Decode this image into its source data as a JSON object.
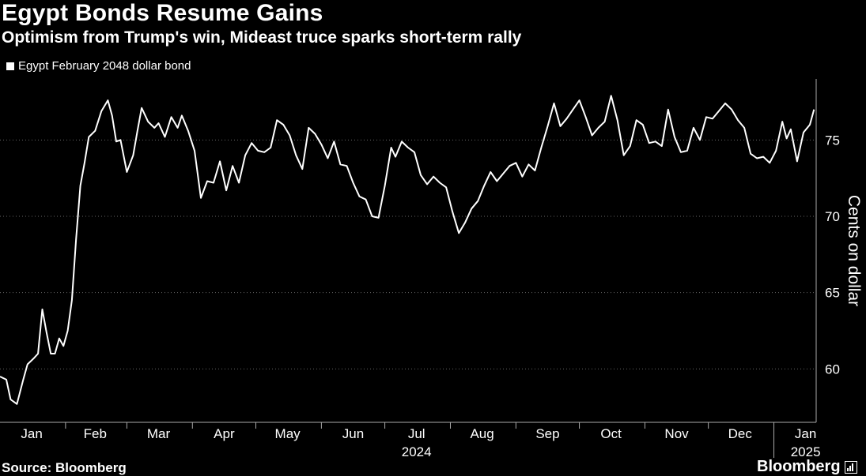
{
  "header": {
    "title": "Egypt Bonds Resume Gains",
    "subtitle": "Optimism from Trump's win, Mideast truce sparks short-term rally"
  },
  "footer": {
    "source": "Source: Bloomberg",
    "brand": "Bloomberg"
  },
  "colors": {
    "background": "#000000",
    "line": "#ffffff",
    "grid": "#666666"
  },
  "chart_data": {
    "type": "line",
    "title": "Egypt Bonds Resume Gains",
    "subtitle": "Optimism from Trump's win, Mideast truce sparks short-term rally",
    "ylabel": "Cents on dollar",
    "xlabel": "",
    "ylim": [
      56.5,
      79
    ],
    "y_ticks": [
      60,
      65,
      70,
      75
    ],
    "y_axis_side": "right",
    "grid": "horizontal dotted",
    "legend_position": "top-left",
    "x_ticks": [
      {
        "label": "Jan",
        "date": "2024-01-16"
      },
      {
        "label": "Feb",
        "date": "2024-02-15"
      },
      {
        "label": "Mar",
        "date": "2024-03-16"
      },
      {
        "label": "Apr",
        "date": "2024-04-16"
      },
      {
        "label": "May",
        "date": "2024-05-16"
      },
      {
        "label": "Jun",
        "date": "2024-06-16"
      },
      {
        "label": "Jul",
        "date": "2024-07-16"
      },
      {
        "label": "Aug",
        "date": "2024-08-16"
      },
      {
        "label": "Sep",
        "date": "2024-09-16"
      },
      {
        "label": "Oct",
        "date": "2024-10-16"
      },
      {
        "label": "Nov",
        "date": "2024-11-16"
      },
      {
        "label": "Dec",
        "date": "2024-12-16"
      },
      {
        "label": "Jan",
        "date": "2025-01-16"
      }
    ],
    "year_labels": [
      {
        "label": "2024",
        "date": "2024-07-16"
      },
      {
        "label": "2025",
        "date": "2025-01-16"
      }
    ],
    "x_range": [
      "2024-01-01",
      "2025-01-21"
    ],
    "series": [
      {
        "name": "Egypt February 2048 dollar bond",
        "points": [
          [
            "2024-01-01",
            59.5
          ],
          [
            "2024-01-04",
            59.3
          ],
          [
            "2024-01-06",
            58.0
          ],
          [
            "2024-01-09",
            57.7
          ],
          [
            "2024-01-12",
            59.3
          ],
          [
            "2024-01-14",
            60.3
          ],
          [
            "2024-01-17",
            60.7
          ],
          [
            "2024-01-19",
            61.0
          ],
          [
            "2024-01-21",
            63.9
          ],
          [
            "2024-01-23",
            62.4
          ],
          [
            "2024-01-25",
            61.0
          ],
          [
            "2024-01-27",
            61.0
          ],
          [
            "2024-01-29",
            62.0
          ],
          [
            "2024-01-31",
            61.5
          ],
          [
            "2024-02-02",
            62.5
          ],
          [
            "2024-02-04",
            64.5
          ],
          [
            "2024-02-06",
            68.5
          ],
          [
            "2024-02-08",
            72.0
          ],
          [
            "2024-02-10",
            73.5
          ],
          [
            "2024-02-12",
            75.2
          ],
          [
            "2024-02-15",
            75.6
          ],
          [
            "2024-02-18",
            76.9
          ],
          [
            "2024-02-21",
            77.6
          ],
          [
            "2024-02-23",
            76.6
          ],
          [
            "2024-02-25",
            74.9
          ],
          [
            "2024-02-27",
            75.0
          ],
          [
            "2024-03-01",
            72.9
          ],
          [
            "2024-03-04",
            74.0
          ],
          [
            "2024-03-06",
            75.6
          ],
          [
            "2024-03-08",
            77.1
          ],
          [
            "2024-03-11",
            76.2
          ],
          [
            "2024-03-14",
            75.8
          ],
          [
            "2024-03-16",
            76.1
          ],
          [
            "2024-03-19",
            75.2
          ],
          [
            "2024-03-22",
            76.5
          ],
          [
            "2024-03-25",
            75.8
          ],
          [
            "2024-03-27",
            76.6
          ],
          [
            "2024-03-30",
            75.6
          ],
          [
            "2024-04-02",
            74.3
          ],
          [
            "2024-04-05",
            71.2
          ],
          [
            "2024-04-08",
            72.3
          ],
          [
            "2024-04-11",
            72.2
          ],
          [
            "2024-04-14",
            73.6
          ],
          [
            "2024-04-17",
            71.7
          ],
          [
            "2024-04-20",
            73.3
          ],
          [
            "2024-04-23",
            72.2
          ],
          [
            "2024-04-26",
            74.0
          ],
          [
            "2024-04-29",
            74.8
          ],
          [
            "2024-05-02",
            74.3
          ],
          [
            "2024-05-05",
            74.2
          ],
          [
            "2024-05-08",
            74.5
          ],
          [
            "2024-05-11",
            76.3
          ],
          [
            "2024-05-14",
            76.0
          ],
          [
            "2024-05-17",
            75.3
          ],
          [
            "2024-05-20",
            74.0
          ],
          [
            "2024-05-23",
            73.1
          ],
          [
            "2024-05-26",
            75.8
          ],
          [
            "2024-05-29",
            75.4
          ],
          [
            "2024-06-01",
            74.7
          ],
          [
            "2024-06-04",
            73.8
          ],
          [
            "2024-06-07",
            74.9
          ],
          [
            "2024-06-10",
            73.4
          ],
          [
            "2024-06-13",
            73.3
          ],
          [
            "2024-06-16",
            72.2
          ],
          [
            "2024-06-19",
            71.3
          ],
          [
            "2024-06-22",
            71.1
          ],
          [
            "2024-06-25",
            70.0
          ],
          [
            "2024-06-28",
            69.9
          ],
          [
            "2024-07-01",
            72.0
          ],
          [
            "2024-07-04",
            74.5
          ],
          [
            "2024-07-06",
            73.9
          ],
          [
            "2024-07-09",
            74.9
          ],
          [
            "2024-07-12",
            74.5
          ],
          [
            "2024-07-15",
            74.2
          ],
          [
            "2024-07-18",
            72.7
          ],
          [
            "2024-07-21",
            72.1
          ],
          [
            "2024-07-24",
            72.6
          ],
          [
            "2024-07-27",
            72.2
          ],
          [
            "2024-07-30",
            71.9
          ],
          [
            "2024-08-02",
            70.3
          ],
          [
            "2024-08-05",
            68.9
          ],
          [
            "2024-08-08",
            69.6
          ],
          [
            "2024-08-11",
            70.5
          ],
          [
            "2024-08-14",
            71.0
          ],
          [
            "2024-08-17",
            72.0
          ],
          [
            "2024-08-20",
            72.9
          ],
          [
            "2024-08-23",
            72.3
          ],
          [
            "2024-08-26",
            72.8
          ],
          [
            "2024-08-29",
            73.3
          ],
          [
            "2024-09-01",
            73.5
          ],
          [
            "2024-09-04",
            72.6
          ],
          [
            "2024-09-07",
            73.4
          ],
          [
            "2024-09-10",
            73.0
          ],
          [
            "2024-09-13",
            74.5
          ],
          [
            "2024-09-16",
            75.9
          ],
          [
            "2024-09-19",
            77.4
          ],
          [
            "2024-09-22",
            75.9
          ],
          [
            "2024-09-25",
            76.4
          ],
          [
            "2024-09-28",
            77.0
          ],
          [
            "2024-10-01",
            77.6
          ],
          [
            "2024-10-04",
            76.5
          ],
          [
            "2024-10-07",
            75.3
          ],
          [
            "2024-10-10",
            75.8
          ],
          [
            "2024-10-13",
            76.2
          ],
          [
            "2024-10-16",
            77.9
          ],
          [
            "2024-10-19",
            76.3
          ],
          [
            "2024-10-22",
            74.0
          ],
          [
            "2024-10-25",
            74.6
          ],
          [
            "2024-10-28",
            76.3
          ],
          [
            "2024-10-31",
            76.0
          ],
          [
            "2024-11-03",
            74.8
          ],
          [
            "2024-11-06",
            74.9
          ],
          [
            "2024-11-09",
            74.6
          ],
          [
            "2024-11-12",
            77.0
          ],
          [
            "2024-11-15",
            75.2
          ],
          [
            "2024-11-18",
            74.2
          ],
          [
            "2024-11-21",
            74.3
          ],
          [
            "2024-11-24",
            75.8
          ],
          [
            "2024-11-27",
            75.0
          ],
          [
            "2024-11-30",
            76.5
          ],
          [
            "2024-12-03",
            76.4
          ],
          [
            "2024-12-06",
            76.9
          ],
          [
            "2024-12-09",
            77.4
          ],
          [
            "2024-12-12",
            77.0
          ],
          [
            "2024-12-15",
            76.3
          ],
          [
            "2024-12-18",
            75.8
          ],
          [
            "2024-12-21",
            74.1
          ],
          [
            "2024-12-24",
            73.8
          ],
          [
            "2024-12-27",
            73.9
          ],
          [
            "2024-12-30",
            73.5
          ],
          [
            "2025-01-02",
            74.3
          ],
          [
            "2025-01-05",
            76.2
          ],
          [
            "2025-01-07",
            75.1
          ],
          [
            "2025-01-09",
            75.7
          ],
          [
            "2025-01-12",
            73.6
          ],
          [
            "2025-01-15",
            75.5
          ],
          [
            "2025-01-18",
            76.0
          ],
          [
            "2025-01-20",
            77.0
          ]
        ]
      }
    ]
  }
}
